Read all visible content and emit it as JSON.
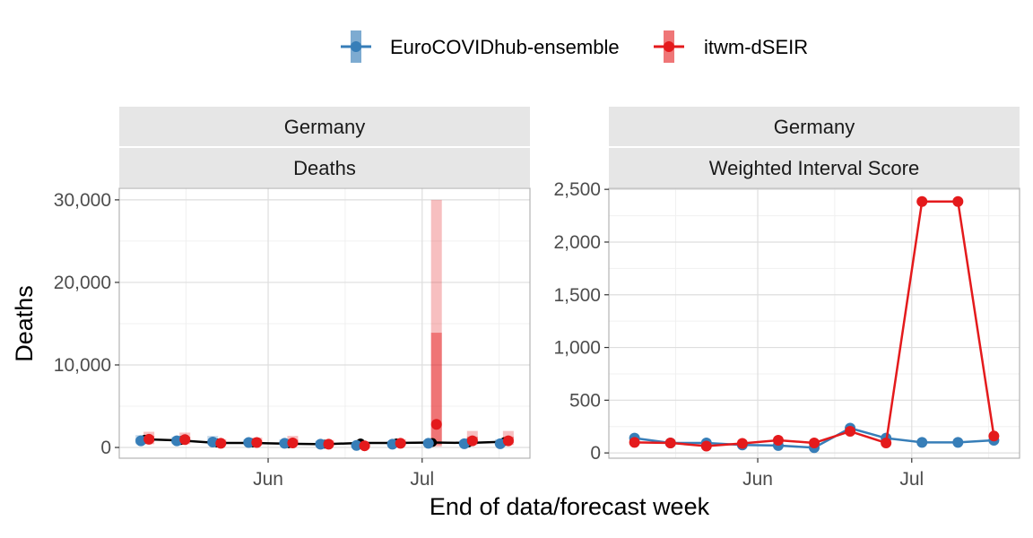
{
  "legend": {
    "items": [
      {
        "label": "EuroCOVIDhub-ensemble",
        "color": "#377EB8"
      },
      {
        "label": "itwm-dSEIR",
        "color": "#E41A1C"
      }
    ]
  },
  "axes": {
    "xlabel": "End of data/forecast week",
    "ylabel": "Deaths"
  },
  "chart_data": [
    {
      "type": "line",
      "panel": "left",
      "strip_top": "Germany",
      "strip_bottom": "Deaths",
      "x_ticks": [
        "Jun",
        "Jul"
      ],
      "y_ticks": [
        "0",
        "10,000",
        "20,000",
        "30,000"
      ],
      "ylim": [
        -1300,
        31400
      ],
      "x_weeks": [
        "2021-05-08",
        "2021-05-15",
        "2021-05-22",
        "2021-05-29",
        "2021-06-05",
        "2021-06-12",
        "2021-06-19",
        "2021-06-26",
        "2021-07-03",
        "2021-07-10",
        "2021-07-17"
      ],
      "observed": [
        1000,
        850,
        550,
        550,
        450,
        400,
        550,
        550,
        600,
        550,
        700
      ],
      "series": [
        {
          "name": "EuroCOVIDhub-ensemble",
          "color": "#377EB8",
          "median": [
            800,
            800,
            650,
            600,
            500,
            400,
            250,
            400,
            500,
            450,
            450
          ],
          "inner": [
            [
              600,
              1100
            ],
            [
              600,
              1050
            ],
            [
              450,
              900
            ],
            [
              450,
              800
            ],
            [
              380,
              700
            ],
            [
              300,
              550
            ],
            [
              180,
              380
            ],
            [
              300,
              600
            ],
            [
              380,
              700
            ],
            [
              330,
              650
            ],
            [
              330,
              700
            ]
          ],
          "outer": [
            [
              400,
              1500
            ],
            [
              450,
              1300
            ],
            [
              300,
              1400
            ],
            [
              330,
              1000
            ],
            [
              280,
              1000
            ],
            [
              200,
              800
            ],
            [
              120,
              550
            ],
            [
              200,
              800
            ],
            [
              280,
              900
            ],
            [
              230,
              850
            ],
            [
              230,
              1000
            ]
          ]
        },
        {
          "name": "itwm-dSEIR",
          "color": "#E41A1C",
          "median": [
            1000,
            950,
            500,
            600,
            550,
            400,
            200,
            500,
            2800,
            800,
            800
          ],
          "inner": [
            [
              700,
              1400
            ],
            [
              650,
              1300
            ],
            [
              350,
              750
            ],
            [
              450,
              900
            ],
            [
              400,
              950
            ],
            [
              280,
              600
            ],
            [
              130,
              300
            ],
            [
              350,
              750
            ],
            [
              300,
              13900
            ],
            [
              550,
              1300
            ],
            [
              550,
              1300
            ]
          ],
          "outer": [
            [
              400,
              1900
            ],
            [
              400,
              1800
            ],
            [
              200,
              1000
            ],
            [
              250,
              1200
            ],
            [
              250,
              1400
            ],
            [
              180,
              900
            ],
            [
              80,
              450
            ],
            [
              200,
              1000
            ],
            [
              100,
              30000
            ],
            [
              300,
              2000
            ],
            [
              300,
              2000
            ]
          ]
        }
      ]
    },
    {
      "type": "line",
      "panel": "right",
      "strip_top": "Germany",
      "strip_bottom": "Weighted Interval Score",
      "x_ticks": [
        "Jun",
        "Jul"
      ],
      "y_ticks": [
        "0",
        "500",
        "1,000",
        "1,500",
        "2,000",
        "2,500"
      ],
      "ylim": [
        -50,
        2510
      ],
      "x_weeks": [
        "2021-05-08",
        "2021-05-15",
        "2021-05-22",
        "2021-05-29",
        "2021-06-05",
        "2021-06-12",
        "2021-06-19",
        "2021-06-26",
        "2021-07-03",
        "2021-07-10",
        "2021-07-17"
      ],
      "series": [
        {
          "name": "EuroCOVIDhub-ensemble",
          "color": "#377EB8",
          "values": [
            140,
            95,
            95,
            75,
            70,
            50,
            235,
            140,
            100,
            100,
            120
          ]
        },
        {
          "name": "itwm-dSEIR",
          "color": "#E41A1C",
          "values": [
            100,
            95,
            65,
            90,
            120,
            95,
            205,
            95,
            2385,
            2385,
            160
          ]
        }
      ]
    }
  ]
}
